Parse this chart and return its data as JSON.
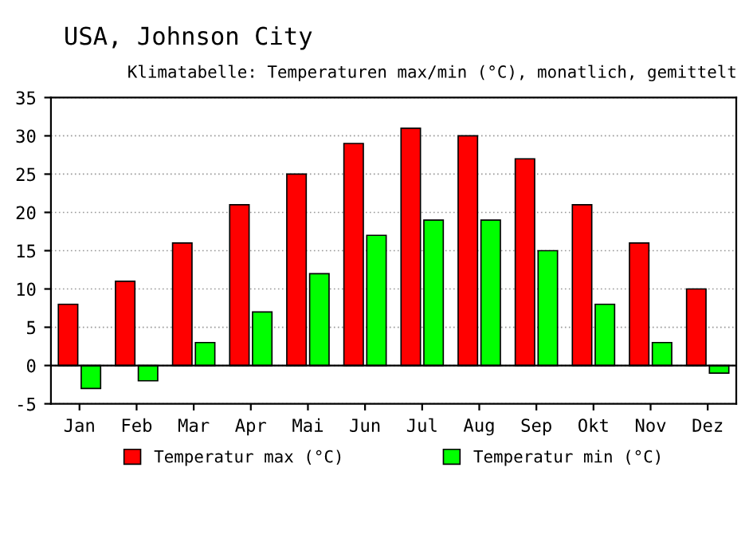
{
  "chart_data": {
    "type": "bar",
    "title": "USA, Johnson City",
    "subtitle": "Klimatabelle: Temperaturen max/min (°C), monatlich, gemittelt",
    "categories": [
      "Jan",
      "Feb",
      "Mar",
      "Apr",
      "Mai",
      "Jun",
      "Jul",
      "Aug",
      "Sep",
      "Okt",
      "Nov",
      "Dez"
    ],
    "series": [
      {
        "name": "Temperatur max (°C)",
        "color": "#ff0000",
        "values": [
          8,
          11,
          16,
          21,
          25,
          29,
          31,
          30,
          27,
          21,
          16,
          10
        ]
      },
      {
        "name": "Temperatur min (°C)",
        "color": "#00ff00",
        "values": [
          -3,
          -2,
          3,
          7,
          12,
          17,
          19,
          19,
          15,
          8,
          3,
          -1
        ]
      }
    ],
    "ylim": [
      -5,
      35
    ],
    "yticks": [
      -5,
      0,
      5,
      10,
      15,
      20,
      25,
      30,
      35
    ],
    "grid": "y",
    "legend": "bottom"
  }
}
